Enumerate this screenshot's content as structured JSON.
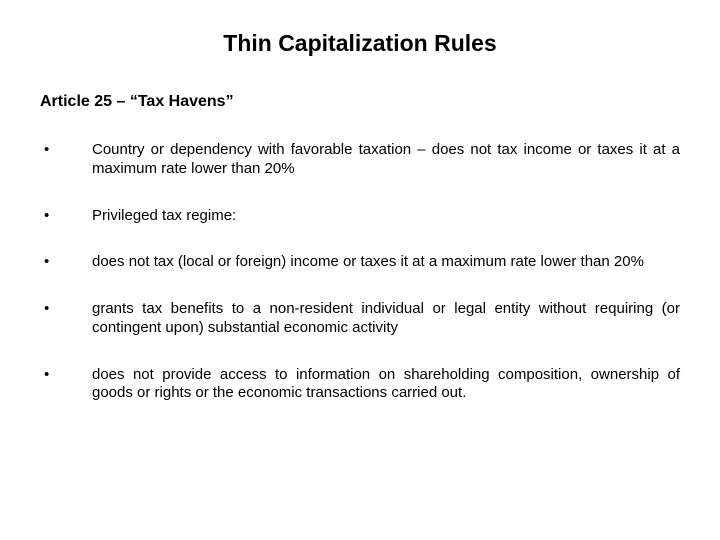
{
  "title": "Thin Capitalization Rules",
  "subtitle": "Article 25 – “Tax Havens”",
  "bullets": [
    {
      "text": "Country or dependency with favorable taxation – does not tax income or taxes it at a maximum rate lower than 20%"
    },
    {
      "text": "Privileged tax regime:"
    },
    {
      "text": "does not tax (local or foreign) income or taxes it at a maximum rate lower than 20%"
    },
    {
      "text": "grants tax benefits to a non-resident individual or legal entity without requiring (or contingent upon) substantial economic activity"
    },
    {
      "text": "does not provide access to information on shareholding composition, ownership of goods or rights or the economic transactions carried out."
    }
  ],
  "colors": {
    "background": "#ffffff",
    "text": "#000000"
  },
  "fonts": {
    "family": "Verdana",
    "title_size": 23,
    "subtitle_size": 16,
    "body_size": 15
  }
}
